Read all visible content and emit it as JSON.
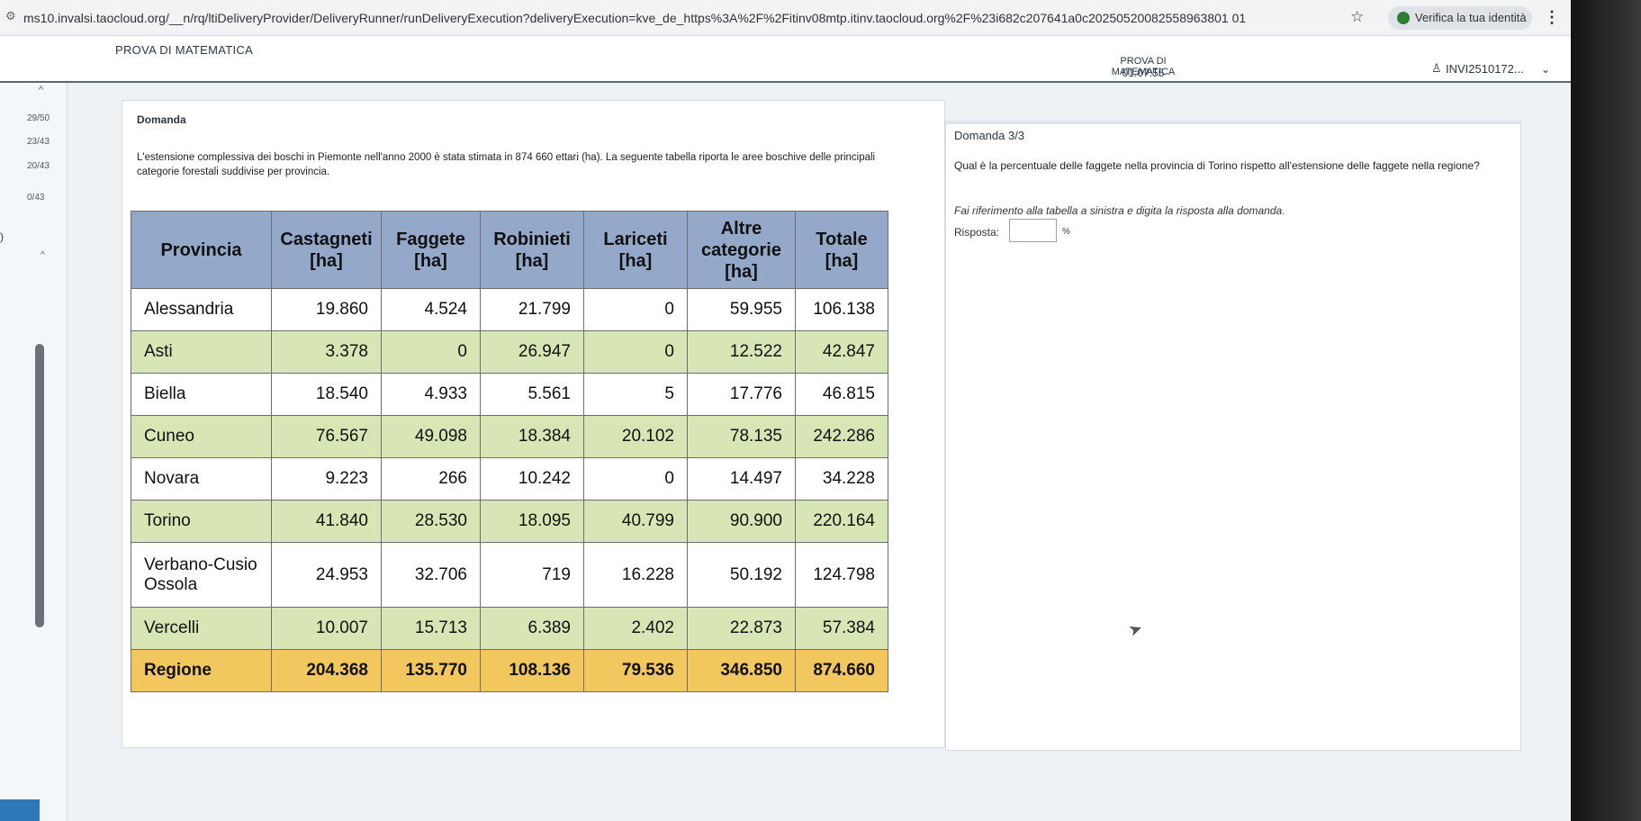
{
  "browser": {
    "url": "ms10.invalsi.taocloud.org/__n/rq/ltiDeliveryProvider/DeliveryRunner/runDeliveryExecution?deliveryExecution=kve_de_https%3A%2F%2Fitinv08mtp.itinv.taocloud.org%2F%23i682c207641a0c20250520082558963801 01",
    "verify_label": "Verifica la tua identità"
  },
  "header": {
    "title": "PROVA DI MATEMATICA",
    "test_title": "PROVA DI MATEMATICA",
    "timer": "01:07:55",
    "user_id": "INVI2510172..."
  },
  "sidebar": {
    "items": [
      "29/50",
      "23/43",
      "20/43",
      "0/43"
    ]
  },
  "stimulus": {
    "label": "Domanda",
    "text": "L'estensione complessiva dei boschi in Piemonte nell'anno 2000 è stata stimata in  874 660 ettari (ha). La seguente tabella riporta le aree boschive delle principali categorie forestali suddivise per provincia."
  },
  "table": {
    "headers": [
      "Provincia",
      "Castagneti [ha]",
      "Faggete [ha]",
      "Robinieti [ha]",
      "Lariceti [ha]",
      "Altre categorie [ha]",
      "Totale [ha]"
    ],
    "rows": [
      [
        "Alessandria",
        "19.860",
        "4.524",
        "21.799",
        "0",
        "59.955",
        "106.138"
      ],
      [
        "Asti",
        "3.378",
        "0",
        "26.947",
        "0",
        "12.522",
        "42.847"
      ],
      [
        "Biella",
        "18.540",
        "4.933",
        "5.561",
        "5",
        "17.776",
        "46.815"
      ],
      [
        "Cuneo",
        "76.567",
        "49.098",
        "18.384",
        "20.102",
        "78.135",
        "242.286"
      ],
      [
        "Novara",
        "9.223",
        "266",
        "10.242",
        "0",
        "14.497",
        "34.228"
      ],
      [
        "Torino",
        "41.840",
        "28.530",
        "18.095",
        "40.799",
        "90.900",
        "220.164"
      ],
      [
        "Verbano-Cusio Ossola",
        "24.953",
        "32.706",
        "719",
        "16.228",
        "50.192",
        "124.798"
      ],
      [
        "Vercelli",
        "10.007",
        "15.713",
        "6.389",
        "2.402",
        "22.873",
        "57.384"
      ],
      [
        "Regione",
        "204.368",
        "135.770",
        "108.136",
        "79.536",
        "346.850",
        "874.660"
      ]
    ]
  },
  "question": {
    "label": "Domanda 3/3",
    "text": "Qual è la percentuale delle faggete nella provincia di Torino rispetto all'estensione delle faggete nella regione?",
    "instruction": "Fai riferimento alla tabella a sinistra e digita la risposta alla domanda.",
    "answer_label": "Risposta:",
    "answer_value": "",
    "answer_unit": "%"
  }
}
